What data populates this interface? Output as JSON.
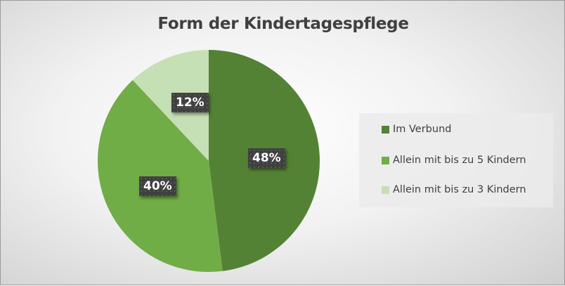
{
  "chart_data": {
    "type": "pie",
    "title": "Form der Kindertagespflege",
    "categories": [
      "Im Verbund",
      "Allein mit bis zu 5 Kindern",
      "Allein mit bis zu 3 Kindern"
    ],
    "values": [
      48,
      40,
      12
    ],
    "labels": [
      "48%",
      "40%",
      "12%"
    ],
    "colors": [
      "#548235",
      "#70ad47",
      "#c5e0b4"
    ],
    "legend": "right"
  }
}
